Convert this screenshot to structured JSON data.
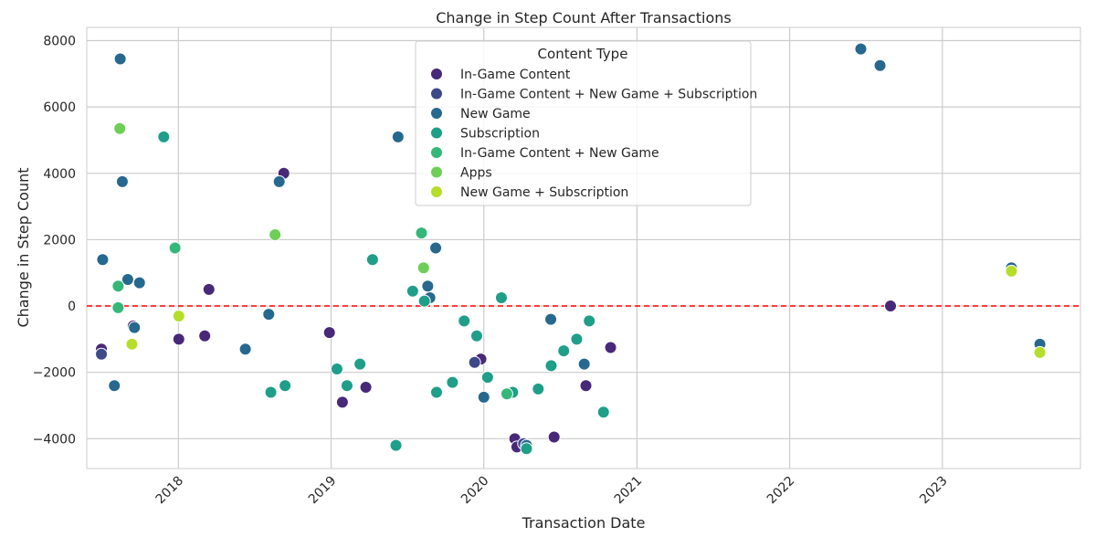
{
  "chart_data": {
    "type": "scatter",
    "title": "Change in Step Count After Transactions",
    "xlabel": "Transaction Date",
    "ylabel": "Change in Step Count",
    "x_type": "date",
    "xlim": [
      "2017-05-27",
      "2023-11-27"
    ],
    "ylim": [
      -4900,
      8400
    ],
    "x_ticks": [
      "2018-01-01",
      "2019-01-01",
      "2020-01-01",
      "2021-01-01",
      "2022-01-01",
      "2023-01-01"
    ],
    "x_tick_labels": [
      "2018",
      "2019",
      "2020",
      "2021",
      "2022",
      "2023"
    ],
    "y_ticks": [
      -4000,
      -2000,
      0,
      2000,
      4000,
      6000,
      8000
    ],
    "y_tick_labels": [
      "−4000",
      "−2000",
      "0",
      "2000",
      "4000",
      "6000",
      "8000"
    ],
    "grid": true,
    "reference_line": {
      "y": 0,
      "color": "#ff0000",
      "style": "dashed"
    },
    "legend": {
      "title": "Content Type",
      "position": "top-center"
    },
    "series": [
      {
        "name": "In-Game Content",
        "color": "#482878",
        "points": [
          {
            "x": "2017-09-15",
            "y": -600
          },
          {
            "x": "2018-01-02",
            "y": -1000
          },
          {
            "x": "2018-03-15",
            "y": 500
          },
          {
            "x": "2018-03-05",
            "y": -900
          },
          {
            "x": "2018-09-10",
            "y": 4000
          },
          {
            "x": "2018-12-28",
            "y": -800
          },
          {
            "x": "2019-01-28",
            "y": -2900
          },
          {
            "x": "2019-03-25",
            "y": -2450
          },
          {
            "x": "2019-12-25",
            "y": -1600
          },
          {
            "x": "2020-03-15",
            "y": -4000
          },
          {
            "x": "2020-03-20",
            "y": -4250
          },
          {
            "x": "2020-06-17",
            "y": -3950
          },
          {
            "x": "2020-09-01",
            "y": -2400
          },
          {
            "x": "2020-10-30",
            "y": -1250
          },
          {
            "x": "2022-08-30",
            "y": 0
          },
          {
            "x": "2017-07-01",
            "y": -1300
          }
        ]
      },
      {
        "name": "In-Game Content + New Game + Subscription",
        "color": "#3e4989",
        "points": [
          {
            "x": "2017-07-01",
            "y": -1450
          },
          {
            "x": "2019-12-10",
            "y": -1700
          },
          {
            "x": "2020-04-05",
            "y": -4150
          }
        ]
      },
      {
        "name": "New Game",
        "color": "#26688e",
        "points": [
          {
            "x": "2017-08-15",
            "y": 7450
          },
          {
            "x": "2017-08-20",
            "y": 3750
          },
          {
            "x": "2017-07-04",
            "y": 1400
          },
          {
            "x": "2017-09-02",
            "y": 800
          },
          {
            "x": "2017-09-30",
            "y": 700
          },
          {
            "x": "2017-09-18",
            "y": -650
          },
          {
            "x": "2017-08-01",
            "y": -2400
          },
          {
            "x": "2018-06-10",
            "y": -1300
          },
          {
            "x": "2018-08-05",
            "y": -250
          },
          {
            "x": "2018-08-30",
            "y": 3750
          },
          {
            "x": "2019-06-10",
            "y": 5100
          },
          {
            "x": "2019-09-08",
            "y": 1750
          },
          {
            "x": "2019-08-20",
            "y": 600
          },
          {
            "x": "2019-08-25",
            "y": 250
          },
          {
            "x": "2020-01-01",
            "y": -2750
          },
          {
            "x": "2020-04-12",
            "y": -4200
          },
          {
            "x": "2020-06-09",
            "y": -400
          },
          {
            "x": "2020-08-28",
            "y": -1750
          },
          {
            "x": "2022-06-20",
            "y": 7750
          },
          {
            "x": "2022-08-05",
            "y": 7250
          },
          {
            "x": "2023-06-15",
            "y": 1150
          },
          {
            "x": "2023-08-22",
            "y": -1150
          }
        ]
      },
      {
        "name": "Subscription",
        "color": "#1f9e89",
        "points": [
          {
            "x": "2017-11-27",
            "y": 5100
          },
          {
            "x": "2018-08-10",
            "y": -2600
          },
          {
            "x": "2018-09-13",
            "y": -2400
          },
          {
            "x": "2019-01-15",
            "y": -1900
          },
          {
            "x": "2019-02-08",
            "y": -2400
          },
          {
            "x": "2019-03-11",
            "y": -1750
          },
          {
            "x": "2019-04-10",
            "y": 1400
          },
          {
            "x": "2019-06-05",
            "y": -4200
          },
          {
            "x": "2019-07-15",
            "y": 450
          },
          {
            "x": "2019-08-12",
            "y": 150
          },
          {
            "x": "2019-09-10",
            "y": -2600
          },
          {
            "x": "2019-10-18",
            "y": -2300
          },
          {
            "x": "2019-11-15",
            "y": -450
          },
          {
            "x": "2019-12-15",
            "y": -900
          },
          {
            "x": "2020-01-10",
            "y": -2150
          },
          {
            "x": "2020-02-12",
            "y": 250
          },
          {
            "x": "2020-03-10",
            "y": -2600
          },
          {
            "x": "2020-04-12",
            "y": -4300
          },
          {
            "x": "2020-05-10",
            "y": -2500
          },
          {
            "x": "2020-06-10",
            "y": -1800
          },
          {
            "x": "2020-07-10",
            "y": -1350
          },
          {
            "x": "2020-08-10",
            "y": -1000
          },
          {
            "x": "2020-09-09",
            "y": -450
          },
          {
            "x": "2020-10-13",
            "y": -3200
          }
        ]
      },
      {
        "name": "In-Game Content + New Game",
        "color": "#35b779",
        "points": [
          {
            "x": "2017-08-10",
            "y": 600
          },
          {
            "x": "2017-08-10",
            "y": -50
          },
          {
            "x": "2017-12-24",
            "y": 1750
          },
          {
            "x": "2019-08-05",
            "y": 2200
          },
          {
            "x": "2020-02-25",
            "y": -2650
          }
        ]
      },
      {
        "name": "Apps",
        "color": "#6ece58",
        "points": [
          {
            "x": "2017-08-14",
            "y": 5350
          },
          {
            "x": "2018-08-20",
            "y": 2150
          },
          {
            "x": "2019-08-10",
            "y": 1150
          }
        ]
      },
      {
        "name": "New Game + Subscription",
        "color": "#b5de2b",
        "points": [
          {
            "x": "2017-09-12",
            "y": -1150
          },
          {
            "x": "2018-01-02",
            "y": -300
          },
          {
            "x": "2023-06-15",
            "y": 1050
          },
          {
            "x": "2023-08-22",
            "y": -1400
          }
        ]
      }
    ]
  }
}
